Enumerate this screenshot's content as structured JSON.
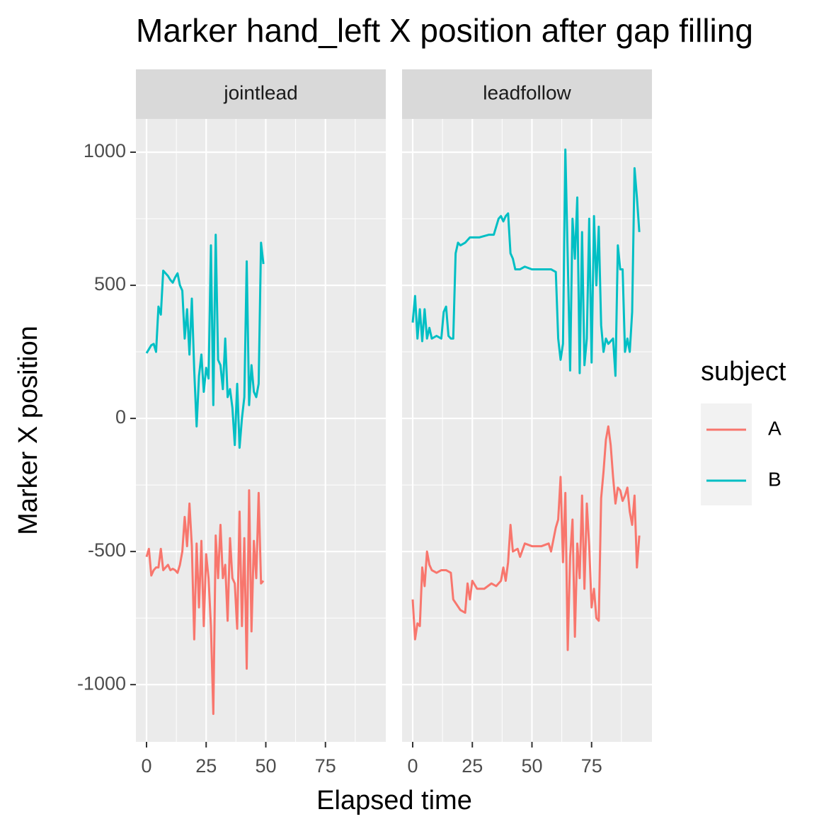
{
  "title": "Marker hand_left X position after gap filling",
  "x_label": "Elapsed time",
  "y_label": "Marker X position",
  "legend_title": "subject",
  "chart_data": [
    {
      "type": "line",
      "panel": "jointlead",
      "xlim": [
        -4.45,
        100.3
      ],
      "xticks": [
        0,
        25,
        50,
        75
      ],
      "xminor": [
        12.5,
        37.5,
        62.5,
        87.5
      ],
      "ylim": [
        -1215,
        1125
      ],
      "yticks": [
        -1000,
        -500,
        0,
        500,
        1000
      ],
      "yminor": [
        -750,
        -250,
        250,
        750
      ],
      "grid": true,
      "series": [
        {
          "name": "A",
          "color": "#F8766D",
          "x": [
            0,
            1,
            2,
            3,
            4,
            5,
            6,
            7,
            8,
            9,
            10,
            11,
            12,
            13,
            14,
            15,
            16,
            17,
            18,
            19,
            20,
            21,
            22,
            23,
            24,
            25,
            26,
            27,
            28,
            29,
            30,
            31,
            32,
            33,
            34,
            35,
            36,
            37,
            38,
            39,
            40,
            41,
            42,
            43,
            44,
            45,
            46,
            47,
            48,
            49
          ],
          "values": [
            -520,
            -490,
            -590,
            -570,
            -560,
            -560,
            -490,
            -570,
            -560,
            -550,
            -570,
            -565,
            -570,
            -580,
            -550,
            -500,
            -370,
            -480,
            -320,
            -480,
            -830,
            -470,
            -710,
            -460,
            -780,
            -510,
            -600,
            -780,
            -1110,
            -440,
            -600,
            -400,
            -600,
            -550,
            -760,
            -450,
            -600,
            -620,
            -790,
            -350,
            -780,
            -450,
            -940,
            -270,
            -800,
            -460,
            -600,
            -280,
            -620,
            -610
          ]
        },
        {
          "name": "B",
          "color": "#00BFC4",
          "x": [
            0,
            1,
            2,
            3,
            4,
            5,
            6,
            7,
            8,
            9,
            10,
            11,
            12,
            13,
            14,
            15,
            16,
            17,
            18,
            19,
            20,
            21,
            22,
            23,
            24,
            25,
            26,
            27,
            28,
            29,
            30,
            31,
            32,
            33,
            34,
            35,
            36,
            37,
            38,
            39,
            40,
            41,
            42,
            43,
            44,
            45,
            46,
            47,
            48,
            49
          ],
          "values": [
            245,
            260,
            275,
            280,
            250,
            420,
            390,
            555,
            545,
            535,
            520,
            510,
            530,
            545,
            500,
            480,
            300,
            410,
            240,
            450,
            180,
            -30,
            160,
            240,
            100,
            190,
            150,
            650,
            50,
            690,
            220,
            200,
            110,
            300,
            80,
            110,
            40,
            -100,
            130,
            -110,
            0,
            80,
            590,
            50,
            200,
            100,
            80,
            130,
            660,
            580
          ]
        }
      ]
    },
    {
      "type": "line",
      "panel": "leadfollow",
      "xlim": [
        -4.45,
        100.3
      ],
      "xticks": [
        0,
        25,
        50,
        75
      ],
      "xminor": [
        12.5,
        37.5,
        62.5,
        87.5
      ],
      "ylim": [
        -1215,
        1125
      ],
      "yticks": [
        -1000,
        -500,
        0,
        500,
        1000
      ],
      "yminor": [
        -750,
        -250,
        250,
        750
      ],
      "grid": true,
      "series": [
        {
          "name": "A",
          "color": "#F8766D",
          "x": [
            0,
            1,
            2,
            3,
            4,
            5,
            6,
            7,
            8,
            10,
            12,
            14,
            16,
            17,
            20,
            22,
            23,
            24,
            25,
            27,
            30,
            33,
            35,
            37,
            38,
            39,
            40,
            41,
            42,
            44,
            45,
            47,
            50,
            54,
            57,
            58,
            60,
            61,
            62,
            63,
            64,
            65,
            66,
            67,
            68,
            69,
            70,
            71,
            72,
            73,
            74,
            75,
            76,
            77,
            78,
            79,
            80,
            81,
            82,
            83,
            84,
            85,
            86,
            87,
            88,
            89,
            90,
            91,
            92,
            93,
            94,
            95
          ],
          "values": [
            -680,
            -830,
            -770,
            -780,
            -560,
            -630,
            -500,
            -550,
            -570,
            -580,
            -570,
            -570,
            -580,
            -680,
            -720,
            -730,
            -620,
            -680,
            -610,
            -640,
            -640,
            -620,
            -630,
            -610,
            -560,
            -610,
            -540,
            -400,
            -500,
            -490,
            -520,
            -470,
            -480,
            -480,
            -470,
            -500,
            -410,
            -380,
            -220,
            -540,
            -280,
            -870,
            -520,
            -380,
            -820,
            -470,
            -600,
            -290,
            -640,
            -320,
            -480,
            -710,
            -640,
            -750,
            -760,
            -300,
            -200,
            -80,
            -30,
            -100,
            -220,
            -320,
            -260,
            -270,
            -310,
            -290,
            -260,
            -350,
            -400,
            -290,
            -560,
            -440
          ]
        },
        {
          "name": "B",
          "color": "#00BFC4",
          "x": [
            0,
            1,
            2,
            3,
            4,
            5,
            6,
            7,
            8,
            10,
            12,
            13,
            14,
            15,
            16,
            17,
            18,
            19,
            20,
            22,
            24,
            26,
            28,
            30,
            32,
            34,
            36,
            37,
            38,
            39,
            40,
            41,
            42,
            43,
            45,
            47,
            50,
            55,
            58,
            60,
            61,
            62,
            63,
            64,
            65,
            66,
            67,
            68,
            69,
            70,
            71,
            72,
            73,
            74,
            75,
            76,
            77,
            78,
            79,
            80,
            81,
            82,
            83,
            84,
            85,
            86,
            87,
            88,
            89,
            90,
            91,
            92,
            93,
            94,
            95
          ],
          "values": [
            360,
            460,
            300,
            410,
            290,
            410,
            300,
            340,
            300,
            310,
            300,
            400,
            420,
            310,
            300,
            300,
            620,
            660,
            650,
            660,
            680,
            680,
            680,
            685,
            690,
            690,
            750,
            760,
            740,
            760,
            770,
            620,
            600,
            560,
            560,
            570,
            560,
            560,
            560,
            550,
            300,
            220,
            280,
            1010,
            600,
            180,
            750,
            600,
            830,
            170,
            700,
            200,
            300,
            750,
            210,
            760,
            500,
            720,
            350,
            250,
            300,
            280,
            290,
            300,
            160,
            650,
            560,
            560,
            250,
            300,
            250,
            400,
            940,
            830,
            700
          ]
        }
      ]
    }
  ]
}
